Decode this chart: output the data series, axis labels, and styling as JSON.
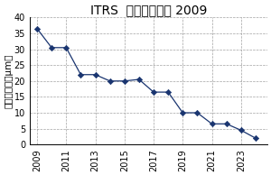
{
  "title": "ITRS  ロードマップ 2009",
  "ylabel": "配線ピッチ（μm）",
  "x_values": [
    2009,
    2010,
    2011,
    2012,
    2013,
    2014,
    2015,
    2016,
    2017,
    2018,
    2019,
    2020,
    2021,
    2022,
    2023,
    2024
  ],
  "y_values": [
    36.5,
    30.5,
    30.5,
    22.0,
    22.0,
    20.0,
    20.0,
    20.5,
    16.5,
    16.5,
    10.0,
    10.0,
    6.5,
    6.5,
    4.5,
    2.0
  ],
  "x_ticks": [
    2009,
    2011,
    2013,
    2015,
    2017,
    2019,
    2021,
    2023
  ],
  "x_tick_labels": [
    "2009",
    "2011",
    "2013",
    "2015",
    "2017",
    "2019",
    "2021",
    "2023"
  ],
  "ylim": [
    0,
    40
  ],
  "yticks": [
    0,
    5,
    10,
    15,
    20,
    25,
    30,
    35,
    40
  ],
  "xlim": [
    2008.5,
    2024.8
  ],
  "line_color": "#1a3570",
  "marker_color": "#1a3570",
  "bg_color": "#ffffff",
  "grid_color": "#999999",
  "title_fontsize": 10,
  "tick_fontsize": 7,
  "ylabel_fontsize": 7.5
}
